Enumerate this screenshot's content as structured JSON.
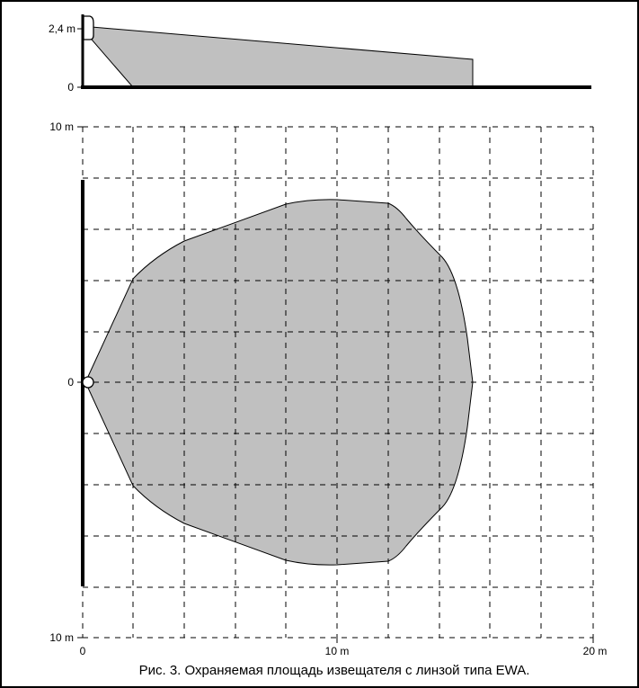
{
  "side_view": {
    "height_label": "2,4 m",
    "floor_label": "0"
  },
  "top_view": {
    "y_top_label": "10 m",
    "y_center_label": "0",
    "y_bottom_label": "10 m",
    "x_start_label": "0",
    "x_mid_label": "10 m",
    "x_end_label": "20 m"
  },
  "caption": "Рис. 3. Охраняемая площадь извещателя с линзой типа EWA.",
  "colors": {
    "coverage_fill": "#c0c0c0",
    "frame": "#000000",
    "grid": "#000000"
  }
}
